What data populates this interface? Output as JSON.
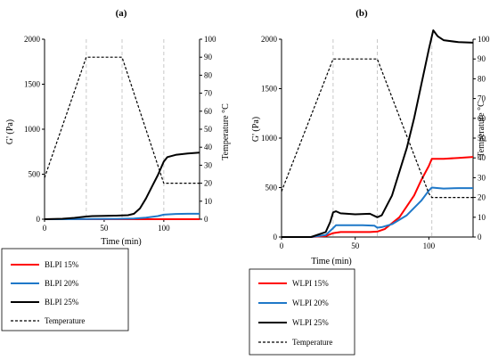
{
  "chart_data": [
    {
      "panel_label": "(a)",
      "type": "line",
      "xlabel": "Time (min)",
      "ylabel": "G' (Pa)",
      "ylabel_right": "Temperature °C",
      "xlim": [
        0,
        130
      ],
      "ylim": [
        0,
        2000
      ],
      "ylim_right": [
        0,
        100
      ],
      "x_ticks": [
        0,
        50,
        100
      ],
      "y_ticks": [
        0,
        500,
        1000,
        1500,
        2000
      ],
      "y_right_ticks": [
        0,
        10,
        20,
        30,
        40,
        50,
        60,
        70,
        80,
        90,
        100
      ],
      "guide_lines_x": [
        35,
        65,
        100
      ],
      "legend_position": "below",
      "series": [
        {
          "name": "BLPI 15%",
          "color": "#ff0000",
          "axis": "left",
          "x": [
            0,
            20,
            40,
            60,
            80,
            100,
            110,
            130
          ],
          "y": [
            0,
            0,
            0,
            0,
            0,
            0,
            0,
            0
          ]
        },
        {
          "name": "BLPI 20%",
          "color": "#1f78c8",
          "axis": "left",
          "x": [
            0,
            20,
            40,
            60,
            75,
            85,
            95,
            100,
            110,
            120,
            130
          ],
          "y": [
            0,
            0,
            2,
            4,
            8,
            18,
            35,
            50,
            58,
            60,
            60
          ]
        },
        {
          "name": "BLPI 25%",
          "color": "#000000",
          "axis": "left",
          "x": [
            0,
            15,
            25,
            35,
            40,
            50,
            60,
            65,
            70,
            75,
            80,
            85,
            90,
            95,
            100,
            103,
            110,
            120,
            130
          ],
          "y": [
            0,
            5,
            15,
            30,
            35,
            38,
            40,
            42,
            45,
            60,
            120,
            230,
            360,
            490,
            640,
            690,
            715,
            730,
            740
          ]
        },
        {
          "name": "Temperature",
          "color": "#000000",
          "dashed": true,
          "axis": "right",
          "x": [
            0,
            35,
            65,
            100,
            103,
            110,
            130
          ],
          "y": [
            23,
            90,
            90,
            20,
            20,
            20,
            20
          ]
        }
      ]
    },
    {
      "panel_label": "(b)",
      "type": "line",
      "xlabel": "Time (min)",
      "ylabel": "G' (Pa)",
      "ylabel_right": "Temperature °C",
      "xlim": [
        0,
        130
      ],
      "ylim": [
        0,
        2000
      ],
      "ylim_right": [
        0,
        100
      ],
      "x_ticks": [
        0,
        50,
        100
      ],
      "y_ticks": [
        0,
        500,
        1000,
        1500,
        2000
      ],
      "y_right_ticks": [
        0,
        10,
        20,
        30,
        40,
        50,
        60,
        70,
        80,
        90,
        100
      ],
      "guide_lines_x": [
        35,
        65,
        102
      ],
      "legend_position": "below",
      "series": [
        {
          "name": "WLPI 15%",
          "color": "#ff0000",
          "axis": "left",
          "x": [
            0,
            20,
            30,
            35,
            40,
            50,
            60,
            65,
            70,
            80,
            90,
            95,
            100,
            102,
            110,
            120,
            130
          ],
          "y": [
            0,
            0,
            10,
            40,
            50,
            50,
            50,
            55,
            80,
            200,
            420,
            580,
            720,
            790,
            790,
            800,
            810
          ]
        },
        {
          "name": "WLPI 20%",
          "color": "#1f78c8",
          "axis": "left",
          "x": [
            0,
            20,
            30,
            35,
            37,
            45,
            55,
            63,
            65,
            68,
            75,
            85,
            95,
            100,
            102,
            110,
            120,
            130
          ],
          "y": [
            0,
            0,
            20,
            90,
            120,
            120,
            120,
            115,
            95,
            100,
            130,
            220,
            370,
            470,
            500,
            490,
            495,
            495
          ]
        },
        {
          "name": "WLPI 25%",
          "color": "#000000",
          "axis": "left",
          "x": [
            0,
            20,
            30,
            33,
            35,
            37,
            40,
            50,
            60,
            65,
            68,
            75,
            85,
            90,
            95,
            100,
            103,
            106,
            110,
            120,
            130
          ],
          "y": [
            0,
            0,
            50,
            150,
            250,
            260,
            240,
            230,
            235,
            200,
            220,
            420,
            900,
            1200,
            1550,
            1900,
            2090,
            2030,
            1990,
            1970,
            1965
          ]
        },
        {
          "name": "Temperature",
          "color": "#000000",
          "dashed": true,
          "axis": "right",
          "x": [
            0,
            35,
            65,
            100,
            102,
            110,
            130
          ],
          "y": [
            23,
            90,
            90,
            22,
            20,
            20,
            20
          ]
        }
      ]
    }
  ]
}
